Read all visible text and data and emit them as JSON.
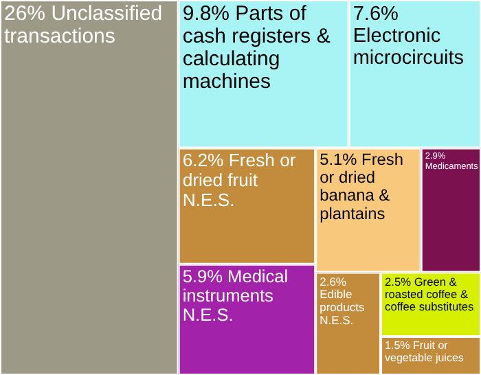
{
  "chart_data": {
    "type": "other",
    "categories": [
      "Unclassified transactions",
      "Parts of cash registers & calculating machines",
      "Electronic microcircuits",
      "Fresh or dried fruit N.E.S.",
      "Medical instruments N.E.S.",
      "Fresh or dried banana & plantains",
      "Medicaments",
      "Edible products N.E.S.",
      "Green & roasted coffee & coffee substitutes",
      "Fruit or vegetable juices"
    ],
    "values": [
      26,
      9.8,
      7.6,
      6.2,
      5.9,
      5.1,
      2.9,
      2.6,
      2.5,
      1.5
    ],
    "value_labels": [
      "26%",
      "9.8%",
      "7.6%",
      "6.2%",
      "5.9%",
      "5.1%",
      "2.9%",
      "2.6%",
      "2.5%",
      "1.5%"
    ],
    "colors": [
      "#9c9a87",
      "#a8f4f4",
      "#a8f4f4",
      "#c28c3c",
      "#a322aa",
      "#f8c87c",
      "#7c1150",
      "#c28c3c",
      "#d6f000",
      "#c28c3c"
    ]
  }
}
